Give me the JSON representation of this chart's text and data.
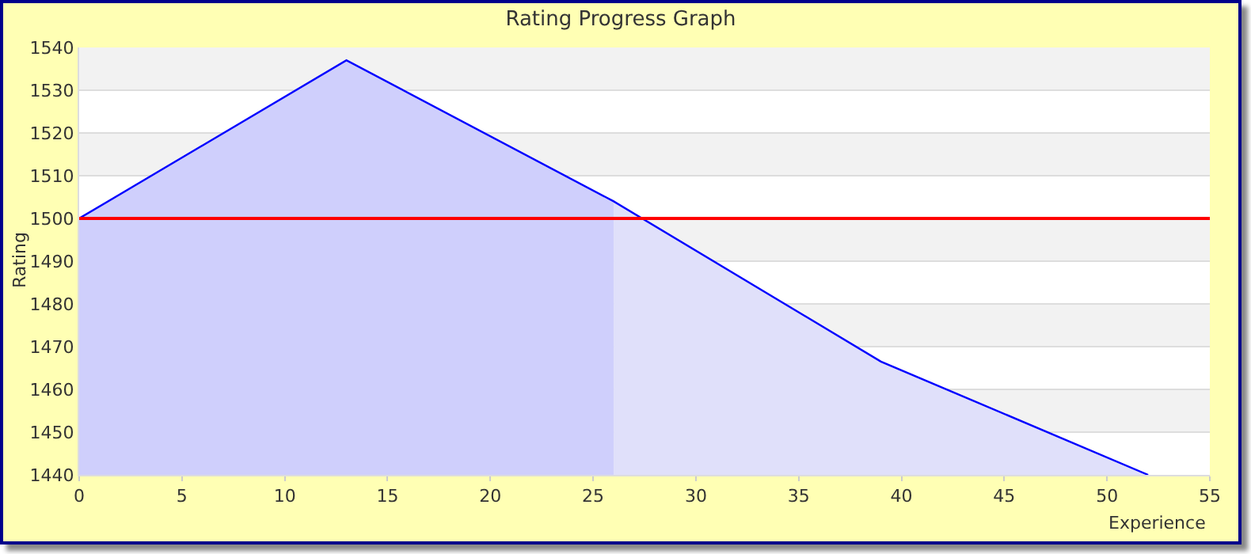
{
  "chart_data": {
    "type": "area",
    "title": "Rating Progress Graph",
    "xlabel": "Experience",
    "ylabel": "Rating",
    "series": [
      {
        "color": "#cfcffc",
        "x": [
          0,
          13,
          26
        ],
        "values": [
          1500,
          1537,
          1504
        ]
      },
      {
        "color": "#e0e0fa",
        "x": [
          26,
          39,
          52
        ],
        "values": [
          1504,
          1466.5,
          1440
        ]
      },
      {
        "type": "line",
        "color": "#0000ff",
        "x": [
          0,
          13,
          26,
          39,
          52
        ],
        "values": [
          1500,
          1537,
          1504,
          1466.5,
          1440
        ]
      }
    ],
    "xlim": [
      0,
      55
    ],
    "xticks": [
      0,
      5,
      10,
      15,
      20,
      25,
      30,
      35,
      40,
      45,
      50,
      55
    ],
    "ylim": [
      1440,
      1540
    ],
    "yticks": [
      1440,
      1450,
      1460,
      1470,
      1480,
      1490,
      1500,
      1510,
      1520,
      1530,
      1540
    ],
    "ref_lines": [
      {
        "axis": "y",
        "value": 1500,
        "color": "#ff0000"
      }
    ],
    "grid": "y",
    "marker": "none",
    "line_style": "solid"
  }
}
